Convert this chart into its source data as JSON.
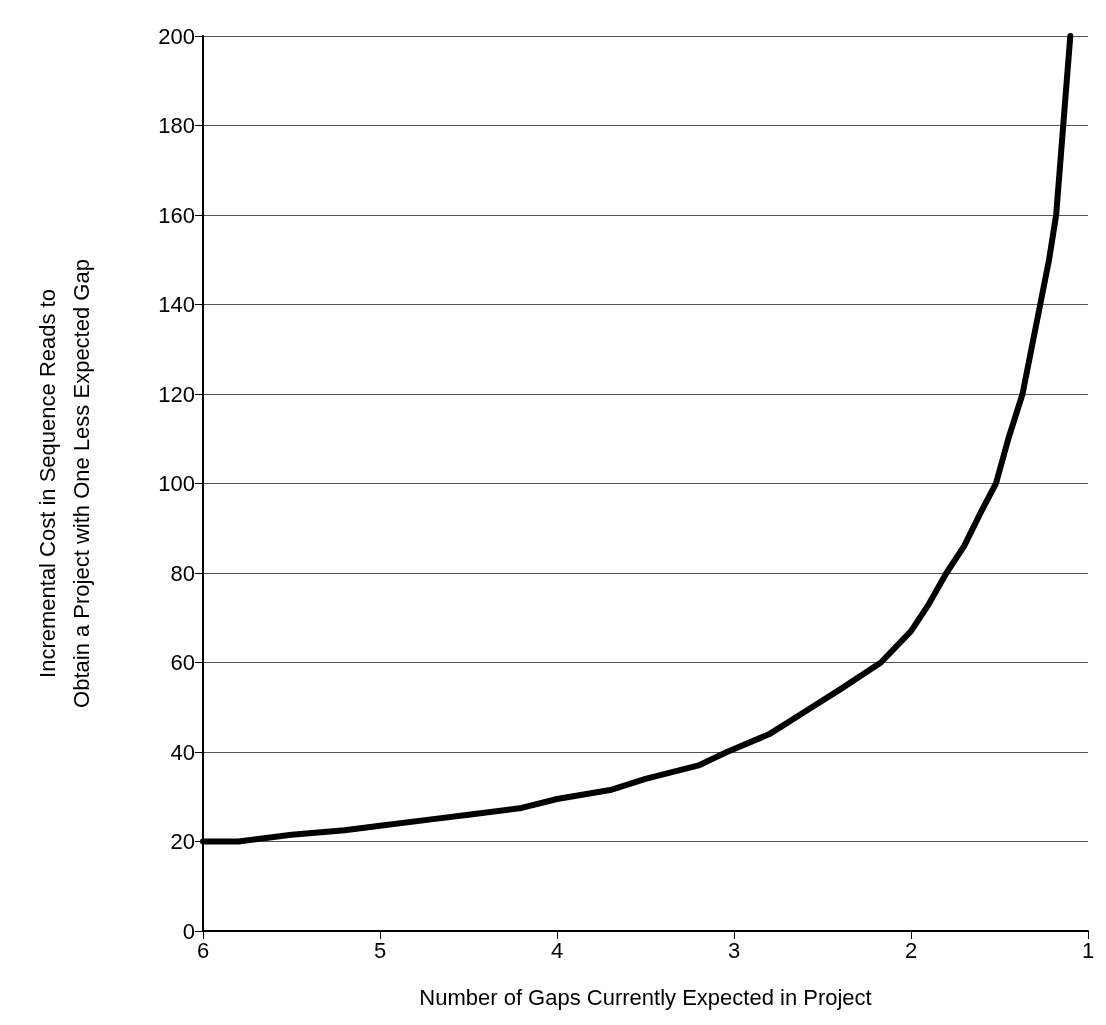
{
  "chart_data": {
    "type": "line",
    "xlabel": "Number of Gaps Currently Expected in Project",
    "ylabel": "Incremental Cost in Sequence Reads to\nObtain a Project with One Less Expected Gap",
    "x": [
      6,
      5.8,
      5.5,
      5.2,
      5,
      4.7,
      4.5,
      4.2,
      4,
      3.7,
      3.5,
      3.2,
      3.04,
      2.8,
      2.56,
      2.4,
      2.17,
      2.0,
      1.9,
      1.8,
      1.7,
      1.6,
      1.52,
      1.45,
      1.37,
      1.32,
      1.27,
      1.22,
      1.18,
      1.14,
      1.1
    ],
    "series": [
      {
        "color": "#000000",
        "values": [
          20,
          20,
          21.5,
          22.5,
          23.5,
          25,
          26,
          27.5,
          29.5,
          31.5,
          34,
          37,
          40,
          44,
          50,
          54,
          60,
          67,
          73,
          80,
          86,
          94,
          100,
          110,
          120,
          130,
          140,
          150,
          160,
          180,
          200
        ]
      }
    ],
    "xlim": [
      6,
      1
    ],
    "xticks": [
      6,
      5,
      4,
      3,
      2,
      1
    ],
    "ylim": [
      0,
      200
    ],
    "yticks": [
      0,
      20,
      40,
      60,
      80,
      100,
      120,
      140,
      160,
      180,
      200
    ],
    "grid": "y",
    "line_style": "solid",
    "marker": "none"
  }
}
